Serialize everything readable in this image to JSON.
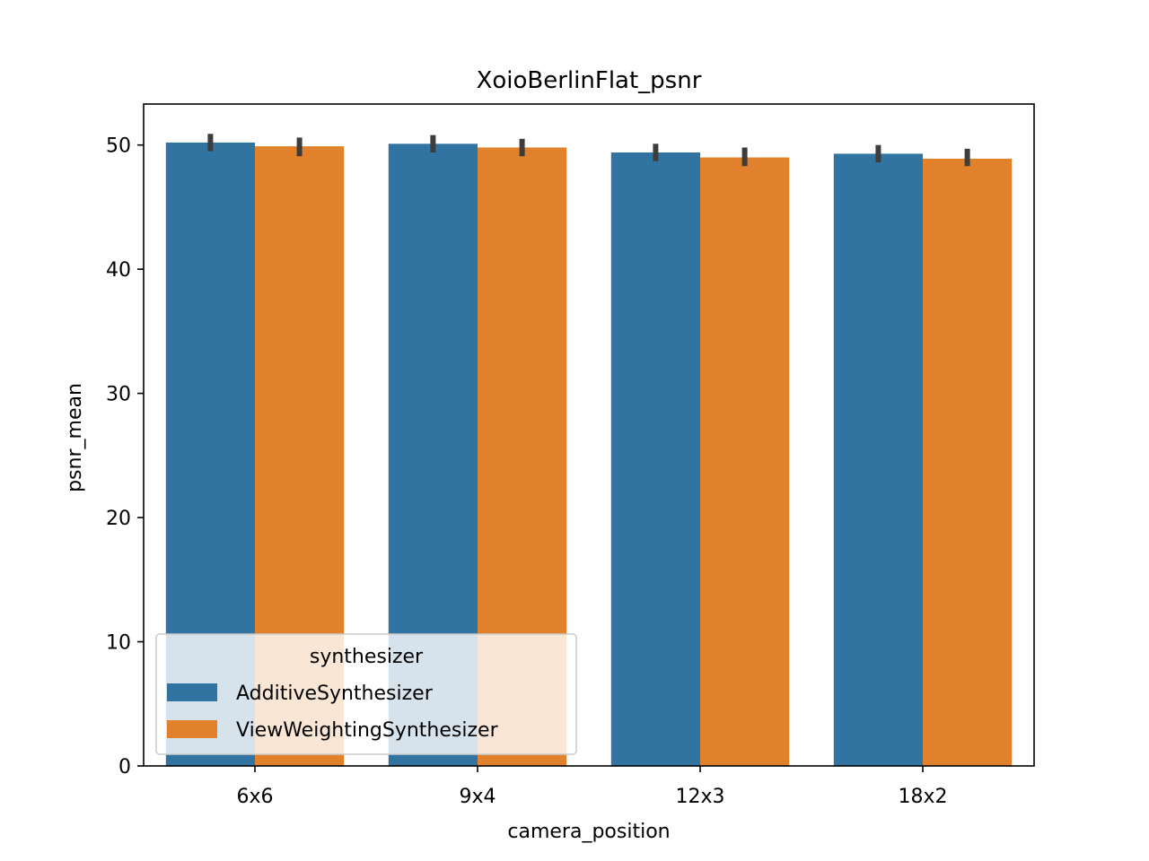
{
  "chart_data": {
    "type": "bar",
    "title": "XoioBerlinFlat_psnr",
    "xlabel": "camera_position",
    "ylabel": "psnr_mean",
    "categories": [
      "6x6",
      "9x4",
      "12x3",
      "18x2"
    ],
    "ylim": [
      0,
      53.3
    ],
    "yticks": [
      0,
      10,
      20,
      30,
      40,
      50
    ],
    "series": [
      {
        "name": "AdditiveSynthesizer",
        "color": "#3274a1",
        "values": [
          50.2,
          50.1,
          49.4,
          49.3
        ],
        "err_low": [
          49.5,
          49.4,
          48.7,
          48.6
        ],
        "err_high": [
          50.9,
          50.8,
          50.1,
          50.0
        ]
      },
      {
        "name": "ViewWeightingSynthesizer",
        "color": "#e1812c",
        "values": [
          49.9,
          49.8,
          49.0,
          48.9
        ],
        "err_low": [
          49.1,
          49.1,
          48.3,
          48.3
        ],
        "err_high": [
          50.6,
          50.5,
          49.8,
          49.7
        ]
      }
    ],
    "legend": {
      "title": "synthesizer",
      "placement": "lower-left"
    },
    "grid": false
  }
}
